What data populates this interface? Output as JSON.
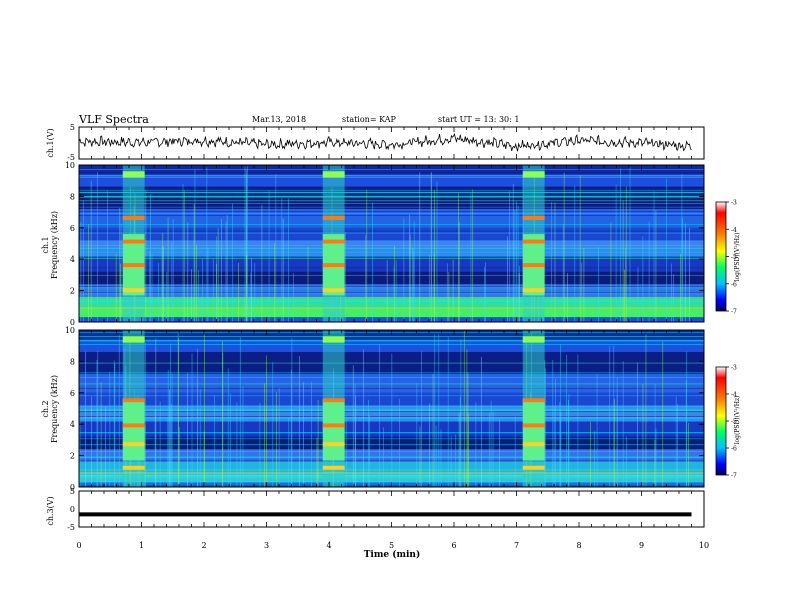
{
  "header": {
    "title": "VLF Spectra",
    "date": "Mar.13, 2018",
    "station": "station= KAP",
    "start": "start  UT =   13: 30: 1"
  },
  "colors": {
    "background": "#ffffff",
    "axes": "#000000",
    "colormap": [
      "#000080",
      "#0000ff",
      "#1e90ff",
      "#00ffff",
      "#00ff7f",
      "#7fff00",
      "#ffff00",
      "#ff7f00",
      "#ff0000",
      "#ffffff"
    ]
  },
  "chart_data": [
    {
      "type": "line",
      "panel": "ch1-voltage",
      "ylabel": "ch.1(V)",
      "ylim": [
        -5,
        5
      ],
      "yticks": [
        5,
        -5
      ],
      "xlim": [
        0,
        10
      ],
      "note_shape": "noisy waveform around about 0 V with amplitude about +/-2 V",
      "x": [
        0,
        1,
        2,
        3,
        4,
        5,
        6,
        7,
        8,
        9,
        9.8
      ],
      "y": [
        0.5,
        0.2,
        0.8,
        -0.5,
        0.2,
        -0.5,
        1.5,
        -1,
        0.8,
        0,
        -1
      ]
    },
    {
      "type": "heatmap",
      "panel": "ch1-spectrogram",
      "ylabel_line1": "ch.1",
      "ylabel_line2": "Frequency (kHz)",
      "ylim": [
        0,
        10
      ],
      "yticks": [
        0,
        2,
        4,
        6,
        8,
        10
      ],
      "xlim": [
        0,
        10
      ],
      "colorbar": {
        "label": "log(PSD)(V²/Hz)",
        "range": [
          -7,
          -3
        ],
        "ticks": [
          -3,
          -4,
          -5,
          -6,
          -7
        ]
      },
      "bursts": [
        {
          "t_start": 0.7,
          "t_end": 1.05
        },
        {
          "t_start": 3.9,
          "t_end": 4.25
        },
        {
          "t_start": 7.1,
          "t_end": 7.45
        }
      ]
    },
    {
      "type": "heatmap",
      "panel": "ch2-spectrogram",
      "ylabel_line1": "ch.2",
      "ylabel_line2": "Frequency (kHz)",
      "ylim": [
        0,
        10
      ],
      "yticks": [
        0,
        2,
        4,
        6,
        8,
        10
      ],
      "xlim": [
        0,
        10
      ],
      "colorbar": {
        "label": "log(PSD)(V²/Hz)",
        "range": [
          -7,
          -3
        ],
        "ticks": [
          -3,
          -4,
          -5,
          -6,
          -7
        ]
      },
      "bursts": [
        {
          "t_start": 0.7,
          "t_end": 1.05
        },
        {
          "t_start": 3.9,
          "t_end": 4.25
        },
        {
          "t_start": 7.1,
          "t_end": 7.45
        }
      ]
    },
    {
      "type": "line",
      "panel": "ch3-voltage",
      "ylabel": "ch.3(V)",
      "ylim": [
        -5,
        5
      ],
      "yticks": [
        5,
        0,
        -5
      ],
      "xlim": [
        0,
        10
      ],
      "x": [
        0,
        9.8
      ],
      "y": [
        -1.5,
        -1.5
      ]
    }
  ],
  "xaxis": {
    "label": "Time  (min)",
    "ticks": [
      "0",
      "1",
      "2",
      "3",
      "4",
      "5",
      "6",
      "7",
      "8",
      "9",
      "10"
    ]
  }
}
